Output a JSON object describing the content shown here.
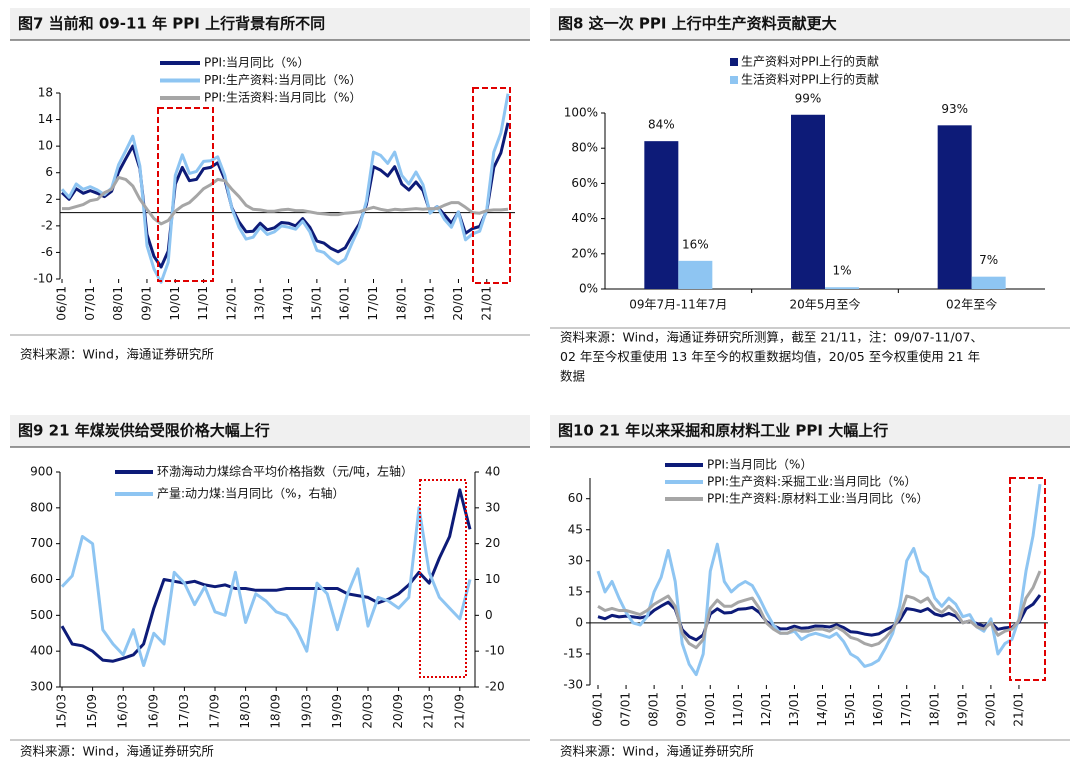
{
  "chart_data": [
    {
      "type": "line",
      "title": "图7  当前和 09-11 年 PPI 上行背景有所不同",
      "source": [
        "资料来源：Wind，海通证券研究所"
      ],
      "categories": [
        "06/01",
        null,
        null,
        null,
        "07/01",
        null,
        null,
        null,
        "08/01",
        null,
        null,
        null,
        "09/01",
        null,
        null,
        null,
        "10/01",
        null,
        null,
        null,
        "11/01",
        null,
        null,
        null,
        "12/01",
        null,
        null,
        null,
        "13/01",
        null,
        null,
        null,
        "14/01",
        null,
        null,
        null,
        "15/01",
        null,
        null,
        null,
        "16/01",
        null,
        null,
        null,
        "17/01",
        null,
        null,
        null,
        "18/01",
        null,
        null,
        null,
        "19/01",
        null,
        null,
        null,
        "20/01",
        null,
        null,
        null,
        "21/01",
        null,
        null,
        null
      ],
      "ylim": [
        -10,
        18
      ],
      "yticks": [
        -10,
        -6,
        -2,
        2,
        6,
        10,
        14,
        18
      ],
      "series": [
        {
          "name": "PPI:当月同比（%）",
          "color": "#0d1b78",
          "values": [
            3.0,
            2.0,
            3.6,
            2.9,
            3.3,
            2.9,
            2.4,
            3.2,
            6.1,
            8.1,
            10.0,
            6.6,
            -3.3,
            -6.6,
            -8.2,
            -5.8,
            4.3,
            6.8,
            4.8,
            5.0,
            6.6,
            6.8,
            7.5,
            5.0,
            0.7,
            -1.4,
            -2.9,
            -2.8,
            -1.6,
            -2.6,
            -2.3,
            -1.5,
            -1.6,
            -2.0,
            -0.9,
            -2.2,
            -4.3,
            -4.6,
            -5.4,
            -5.9,
            -5.3,
            -3.4,
            -1.7,
            1.2,
            6.9,
            6.4,
            5.5,
            6.9,
            4.3,
            3.4,
            4.6,
            3.3,
            0.1,
            0.9,
            -0.3,
            -1.6,
            0.1,
            -3.1,
            -2.4,
            -2.1,
            0.3,
            6.8,
            9.0,
            13.5
          ]
        },
        {
          "name": "PPI:生产资料:当月同比（%）",
          "color": "#8ec5f2",
          "values": [
            3.5,
            2.3,
            4.3,
            3.5,
            3.9,
            3.4,
            2.7,
            3.7,
            7.2,
            9.3,
            11.5,
            7.0,
            -5.0,
            -8.5,
            -10.5,
            -7.5,
            5.6,
            8.7,
            5.9,
            6.2,
            7.7,
            7.8,
            8.4,
            5.6,
            0.6,
            -2.2,
            -4.0,
            -3.7,
            -2.2,
            -3.3,
            -2.9,
            -2.0,
            -2.2,
            -2.5,
            -1.3,
            -2.9,
            -5.7,
            -6.0,
            -7.0,
            -7.7,
            -7.0,
            -4.5,
            -2.2,
            1.7,
            9.1,
            8.6,
            7.4,
            9.1,
            5.6,
            4.3,
            6.1,
            4.2,
            -0.1,
            0.9,
            -1.0,
            -2.2,
            0.1,
            -4.1,
            -3.2,
            -2.8,
            0.5,
            9.1,
            12.0,
            17.9
          ]
        },
        {
          "name": "PPI:生活资料:当月同比（%）",
          "color": "#a6a6a6",
          "values": [
            0.6,
            0.6,
            0.9,
            1.2,
            1.8,
            2.0,
            3.0,
            3.5,
            5.3,
            5.0,
            4.0,
            2.0,
            0.5,
            -0.9,
            -1.7,
            -1.2,
            0.2,
            1.0,
            1.5,
            2.5,
            3.6,
            4.2,
            5.0,
            4.8,
            3.5,
            2.4,
            1.1,
            0.5,
            0.4,
            0.2,
            0.2,
            0.4,
            0.5,
            0.3,
            0.3,
            0.1,
            -0.1,
            -0.2,
            -0.3,
            -0.3,
            -0.1,
            0.0,
            0.1,
            0.5,
            0.8,
            0.5,
            0.3,
            0.5,
            0.4,
            0.5,
            0.6,
            0.5,
            0.6,
            0.6,
            1.1,
            1.5,
            1.5,
            0.8,
            0.0,
            -0.1,
            0.3,
            0.4,
            0.4,
            0.5
          ]
        }
      ]
    },
    {
      "type": "bar",
      "title": "图8  这一次 PPI 上行中生产资料贡献更大",
      "source": [
        "资料来源：Wind，海通证券研究所测算，截至 21/11，注：09/07-11/07、",
        "02 年至今权重使用 13 年至今的权重数据均值，20/05 至今权重使用 21 年",
        "数据"
      ],
      "categories": [
        "09年7月-11年7月",
        "20年5月至今",
        "02年至今"
      ],
      "ylim": [
        0,
        100
      ],
      "yticks": [
        {
          "value": 0,
          "label": "0%"
        },
        {
          "value": 20,
          "label": "20%"
        },
        {
          "value": 40,
          "label": "40%"
        },
        {
          "value": 60,
          "label": "60%"
        },
        {
          "value": 80,
          "label": "80%"
        },
        {
          "value": 100,
          "label": "100%"
        }
      ],
      "series": [
        {
          "name": "生产资料对PPI上行的贡献",
          "color": "#0d1b78",
          "values": [
            84,
            99,
            93
          ],
          "value_labels": [
            "84%",
            "99%",
            "93%"
          ]
        },
        {
          "name": "生活资料对PPI上行的贡献",
          "color": "#8ec5f2",
          "values": [
            16,
            1,
            7
          ],
          "value_labels": [
            "16%",
            "1%",
            "7%"
          ]
        }
      ]
    },
    {
      "type": "line",
      "title": "图9  21 年煤炭供给受限价格大幅上行",
      "source": [
        "资料来源：Wind，海通证券研究所"
      ],
      "categories": [
        "15/03",
        null,
        null,
        "15/09",
        null,
        null,
        "16/03",
        null,
        null,
        "16/09",
        null,
        null,
        "17/03",
        null,
        null,
        "17/09",
        null,
        null,
        "18/03",
        null,
        null,
        "18/09",
        null,
        null,
        "19/03",
        null,
        null,
        "19/09",
        null,
        null,
        "20/03",
        null,
        null,
        "20/09",
        null,
        null,
        "21/03",
        null,
        null,
        "21/09",
        null
      ],
      "ylim": [
        300,
        900
      ],
      "yticks": [
        300,
        400,
        500,
        600,
        700,
        800,
        900
      ],
      "y2lim": [
        -20,
        40
      ],
      "y2ticks": [
        -20,
        -10,
        0,
        10,
        20,
        30,
        40
      ],
      "series": [
        {
          "name": "环渤海动力煤综合平均价格指数（元/吨，左轴）",
          "color": "#0d1b78",
          "values": [
            470,
            420,
            415,
            400,
            375,
            372,
            380,
            390,
            420,
            520,
            600,
            595,
            590,
            595,
            585,
            580,
            585,
            575,
            575,
            570,
            570,
            570,
            575,
            575,
            575,
            575,
            575,
            575,
            560,
            555,
            550,
            535,
            545,
            560,
            585,
            620,
            590,
            660,
            720,
            850,
            740
          ]
        },
        {
          "name": "产量:动力煤:当月同比（%，右轴）",
          "color": "#8ec5f2",
          "axis": "y2",
          "values": [
            8,
            11,
            22,
            20,
            -4,
            -8,
            -11,
            -4,
            -14,
            -5,
            -8,
            12,
            9,
            3,
            8,
            1,
            0,
            12,
            -2,
            6,
            4,
            1,
            0,
            -4,
            -10,
            9,
            6,
            -4,
            6,
            13,
            -3,
            5,
            4,
            2,
            5,
            30,
            12,
            5,
            2,
            -1,
            10
          ]
        }
      ]
    },
    {
      "type": "line",
      "title": "图10 21 年以来采掘和原材料工业 PPI 大幅上行",
      "source": [
        "资料来源：Wind，海通证券研究所"
      ],
      "categories": [
        "06/01",
        null,
        null,
        null,
        "07/01",
        null,
        null,
        null,
        "08/01",
        null,
        null,
        null,
        "09/01",
        null,
        null,
        null,
        "10/01",
        null,
        null,
        null,
        "11/01",
        null,
        null,
        null,
        "12/01",
        null,
        null,
        null,
        "13/01",
        null,
        null,
        null,
        "14/01",
        null,
        null,
        null,
        "15/01",
        null,
        null,
        null,
        "16/01",
        null,
        null,
        null,
        "17/01",
        null,
        null,
        null,
        "18/01",
        null,
        null,
        null,
        "19/01",
        null,
        null,
        null,
        "20/01",
        null,
        null,
        null,
        "21/01",
        null,
        null,
        null
      ],
      "ylim": [
        -30,
        70
      ],
      "yticks": [
        -30,
        -15,
        0,
        15,
        30,
        45,
        60
      ],
      "series": [
        {
          "name": "PPI:当月同比（%）",
          "color": "#0d1b78",
          "values": [
            3.0,
            2.0,
            3.6,
            2.9,
            3.3,
            2.9,
            2.4,
            3.2,
            6.1,
            8.1,
            10.0,
            6.6,
            -3.3,
            -6.6,
            -8.2,
            -5.8,
            4.3,
            6.8,
            4.8,
            5.0,
            6.6,
            6.8,
            7.5,
            5.0,
            0.7,
            -1.4,
            -2.9,
            -2.8,
            -1.6,
            -2.6,
            -2.3,
            -1.5,
            -1.6,
            -2.0,
            -0.9,
            -2.2,
            -4.3,
            -4.6,
            -5.4,
            -5.9,
            -5.3,
            -3.4,
            -1.7,
            1.2,
            6.9,
            6.4,
            5.5,
            6.9,
            4.3,
            3.4,
            4.6,
            3.3,
            0.1,
            0.9,
            -0.3,
            -1.6,
            0.1,
            -3.1,
            -2.4,
            -2.1,
            0.3,
            6.8,
            9.0,
            13.5
          ]
        },
        {
          "name": "PPI:生产资料:采掘工业:当月同比（%）",
          "color": "#8ec5f2",
          "values": [
            25,
            15,
            20,
            12,
            5,
            0,
            -1,
            3,
            15,
            22,
            35,
            20,
            -10,
            -20,
            -25,
            -15,
            25,
            38,
            20,
            15,
            18,
            20,
            18,
            12,
            5,
            -1,
            -5,
            -5,
            -4,
            -8,
            -6,
            -5,
            -6,
            -7,
            -5,
            -9,
            -15,
            -17,
            -21,
            -20,
            -18,
            -12,
            -5,
            8,
            30,
            36,
            25,
            22,
            12,
            8,
            12,
            9,
            3,
            4,
            -2,
            -4,
            2,
            -15,
            -10,
            -8,
            2,
            25,
            42,
            67
          ]
        },
        {
          "name": "PPI:生产资料:原材料工业:当月同比（%）",
          "color": "#a6a6a6",
          "values": [
            8,
            6,
            7,
            6,
            6,
            5,
            4,
            6,
            9,
            11,
            13,
            8,
            -5,
            -10,
            -12,
            -8,
            7,
            11,
            8,
            8,
            10,
            11,
            12,
            7,
            0,
            -3,
            -5,
            -5,
            -3,
            -4,
            -4,
            -3,
            -3,
            -4,
            -2,
            -4,
            -7,
            -8,
            -10,
            -11,
            -10,
            -7,
            -3,
            3,
            13,
            12,
            10,
            12,
            7,
            5,
            8,
            5,
            0,
            1,
            -2,
            -3,
            0,
            -6,
            -4,
            -3,
            1,
            12,
            17,
            25
          ]
        }
      ]
    }
  ]
}
